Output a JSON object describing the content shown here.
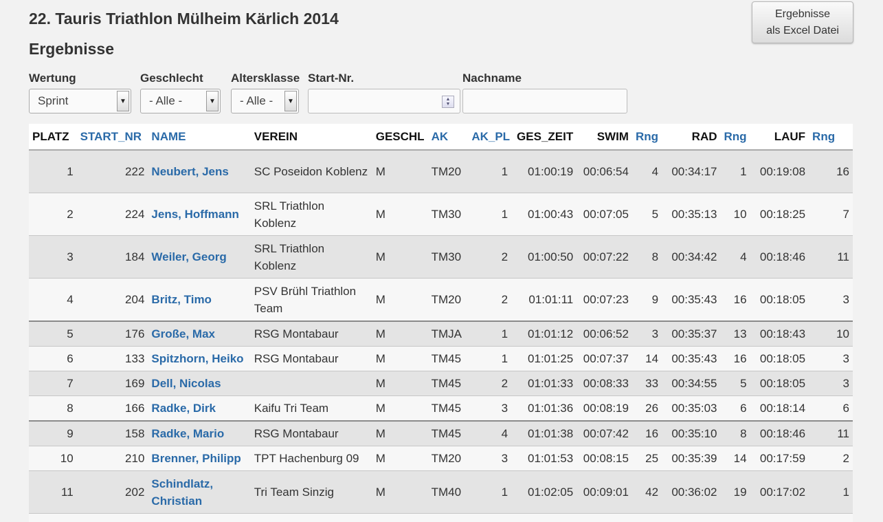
{
  "page": {
    "title": "22. Tauris Triathlon Mülheim Kärlich 2014",
    "subtitle": "Ergebnisse"
  },
  "excel_button": {
    "line1": "Ergebnisse",
    "line2": "als Excel Datei"
  },
  "filters": {
    "wertung": {
      "label": "Wertung",
      "value": "Sprint"
    },
    "geschlecht": {
      "label": "Geschlecht",
      "value": "- Alle -"
    },
    "altersklasse": {
      "label": "Altersklasse",
      "value": "- Alle -"
    },
    "startnr": {
      "label": "Start-Nr.",
      "value": ""
    },
    "nachname": {
      "label": "Nachname",
      "value": ""
    }
  },
  "table": {
    "headers": [
      "PLATZ",
      "START_NR",
      "NAME",
      "VEREIN",
      "GESCHL",
      "AK",
      "AK_PL",
      "GES_ZEIT",
      "SWIM",
      "Rng",
      "RAD",
      "Rng",
      "LAUF",
      "Rng"
    ],
    "rows": [
      {
        "platz": "1",
        "start_nr": "222",
        "name": "Neubert, Jens",
        "verein": "SC Poseidon Koblenz",
        "geschl": "M",
        "ak": "TM20",
        "ak_pl": "1",
        "ges_zeit": "01:00:19",
        "swim": "00:06:54",
        "swim_rng": "4",
        "rad": "00:34:17",
        "rad_rng": "1",
        "lauf": "00:19:08",
        "lauf_rng": "16"
      },
      {
        "platz": "2",
        "start_nr": "224",
        "name": "Jens, Hoffmann",
        "verein": "SRL Triathlon Koblenz",
        "geschl": "M",
        "ak": "TM30",
        "ak_pl": "1",
        "ges_zeit": "01:00:43",
        "swim": "00:07:05",
        "swim_rng": "5",
        "rad": "00:35:13",
        "rad_rng": "10",
        "lauf": "00:18:25",
        "lauf_rng": "7"
      },
      {
        "platz": "3",
        "start_nr": "184",
        "name": "Weiler, Georg",
        "verein": "SRL Triathlon Koblenz",
        "geschl": "M",
        "ak": "TM30",
        "ak_pl": "2",
        "ges_zeit": "01:00:50",
        "swim": "00:07:22",
        "swim_rng": "8",
        "rad": "00:34:42",
        "rad_rng": "4",
        "lauf": "00:18:46",
        "lauf_rng": "11"
      },
      {
        "platz": "4",
        "start_nr": "204",
        "name": "Britz, Timo",
        "verein": "PSV Brühl Triathlon Team",
        "geschl": "M",
        "ak": "TM20",
        "ak_pl": "2",
        "ges_zeit": "01:01:11",
        "swim": "00:07:23",
        "swim_rng": "9",
        "rad": "00:35:43",
        "rad_rng": "16",
        "lauf": "00:18:05",
        "lauf_rng": "3"
      },
      {
        "platz": "5",
        "start_nr": "176",
        "name": "Große, Max",
        "verein": "RSG Montabaur",
        "geschl": "M",
        "ak": "TMJA",
        "ak_pl": "1",
        "ges_zeit": "01:01:12",
        "swim": "00:06:52",
        "swim_rng": "3",
        "rad": "00:35:37",
        "rad_rng": "13",
        "lauf": "00:18:43",
        "lauf_rng": "10"
      },
      {
        "platz": "6",
        "start_nr": "133",
        "name": "Spitzhorn, Heiko",
        "verein": "RSG Montabaur",
        "geschl": "M",
        "ak": "TM45",
        "ak_pl": "1",
        "ges_zeit": "01:01:25",
        "swim": "00:07:37",
        "swim_rng": "14",
        "rad": "00:35:43",
        "rad_rng": "16",
        "lauf": "00:18:05",
        "lauf_rng": "3"
      },
      {
        "platz": "7",
        "start_nr": "169",
        "name": "Dell, Nicolas",
        "verein": "",
        "geschl": "M",
        "ak": "TM45",
        "ak_pl": "2",
        "ges_zeit": "01:01:33",
        "swim": "00:08:33",
        "swim_rng": "33",
        "rad": "00:34:55",
        "rad_rng": "5",
        "lauf": "00:18:05",
        "lauf_rng": "3"
      },
      {
        "platz": "8",
        "start_nr": "166",
        "name": "Radke, Dirk",
        "verein": "Kaifu Tri Team",
        "geschl": "M",
        "ak": "TM45",
        "ak_pl": "3",
        "ges_zeit": "01:01:36",
        "swim": "00:08:19",
        "swim_rng": "26",
        "rad": "00:35:03",
        "rad_rng": "6",
        "lauf": "00:18:14",
        "lauf_rng": "6"
      },
      {
        "platz": "9",
        "start_nr": "158",
        "name": "Radke, Mario",
        "verein": "RSG Montabaur",
        "geschl": "M",
        "ak": "TM45",
        "ak_pl": "4",
        "ges_zeit": "01:01:38",
        "swim": "00:07:42",
        "swim_rng": "16",
        "rad": "00:35:10",
        "rad_rng": "8",
        "lauf": "00:18:46",
        "lauf_rng": "11"
      },
      {
        "platz": "10",
        "start_nr": "210",
        "name": "Brenner, Philipp",
        "verein": "TPT Hachenburg 09",
        "geschl": "M",
        "ak": "TM20",
        "ak_pl": "3",
        "ges_zeit": "01:01:53",
        "swim": "00:08:15",
        "swim_rng": "25",
        "rad": "00:35:39",
        "rad_rng": "14",
        "lauf": "00:17:59",
        "lauf_rng": "2"
      },
      {
        "platz": "11",
        "start_nr": "202",
        "name": "Schindlatz, Christian",
        "verein": "Tri Team Sinzig",
        "geschl": "M",
        "ak": "TM40",
        "ak_pl": "1",
        "ges_zeit": "01:02:05",
        "swim": "00:09:01",
        "swim_rng": "42",
        "rad": "00:36:02",
        "rad_rng": "19",
        "lauf": "00:17:02",
        "lauf_rng": "1"
      }
    ]
  }
}
